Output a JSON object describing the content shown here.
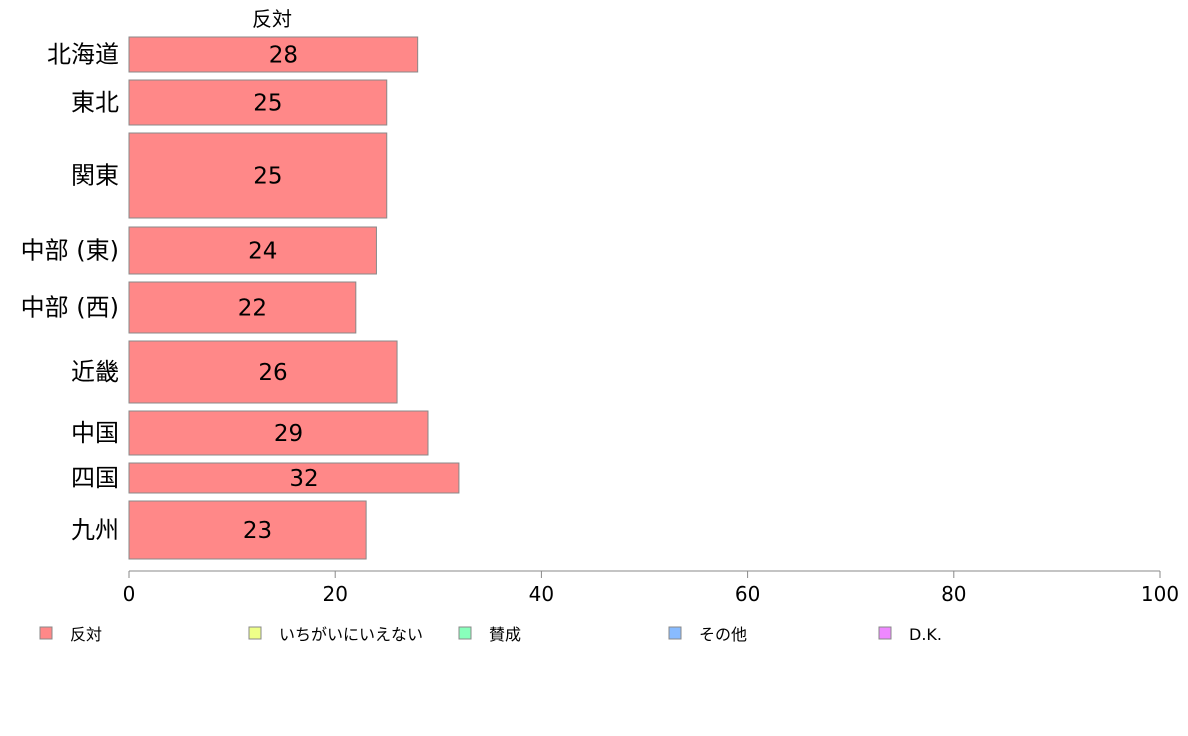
{
  "chart_data": {
    "type": "bar",
    "orientation": "horizontal",
    "stacked": true,
    "title": "",
    "xlabel": "",
    "ylabel": "",
    "xlim": [
      0,
      100
    ],
    "x_ticks": [
      "0",
      "20",
      "40",
      "60",
      "80",
      "100"
    ],
    "x_tick_values": [
      0,
      20,
      40,
      60,
      80,
      100
    ],
    "grid": false,
    "legend_position": "bottom",
    "column_header": "反対",
    "categories": [
      "北海道",
      "東北",
      "関東",
      "中部 (東)",
      "中部 (西)",
      "近畿",
      "中国",
      "四国",
      "九州"
    ],
    "series": [
      {
        "name": "反対",
        "color": "#ff8888",
        "values": [
          28,
          25,
          25,
          24,
          22,
          26,
          29,
          32,
          23
        ]
      }
    ],
    "legend": [
      {
        "label": "反対",
        "color": "#ff8888"
      },
      {
        "label": "いちがいにいえない",
        "color": "#eeff88"
      },
      {
        "label": "賛成",
        "color": "#88ffbb"
      },
      {
        "label": "その他",
        "color": "#88bbff"
      },
      {
        "label": "D.K.",
        "color": "#ee88ff"
      }
    ]
  }
}
